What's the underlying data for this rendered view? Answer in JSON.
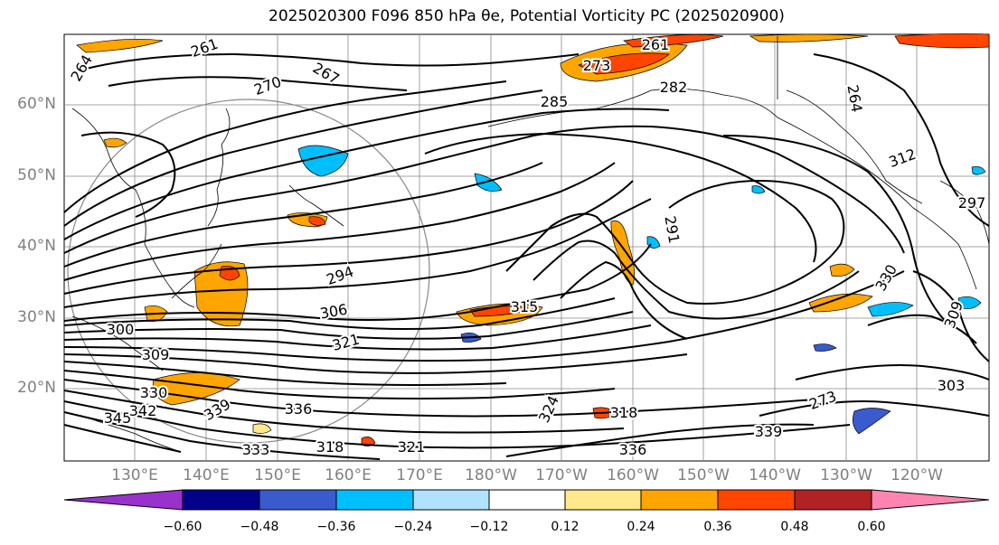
{
  "title": "2025020300 F096 850 hPa θe, Potential Vorticity PC (2025020900)",
  "latitude_labels": [
    "60°N",
    "50°N",
    "40°N",
    "30°N",
    "20°N"
  ],
  "longitude_labels": [
    "130°E",
    "140°E",
    "150°E",
    "160°E",
    "170°E",
    "180°W",
    "170°W",
    "160°W",
    "150°W",
    "140°W",
    "130°W",
    "120°W"
  ],
  "contour_labels": [
    "261",
    "264",
    "267",
    "270",
    "261",
    "273",
    "282",
    "285",
    "264",
    "291",
    "294",
    "306",
    "300",
    "309",
    "315",
    "321",
    "330",
    "345",
    "342",
    "339",
    "336",
    "333",
    "318",
    "321",
    "324",
    "318",
    "273",
    "303",
    "312",
    "330",
    "336",
    "339",
    "297",
    "309"
  ],
  "colorbar": {
    "ticks": [
      "−0.60",
      "−0.48",
      "−0.36",
      "−0.24",
      "−0.12",
      "0.12",
      "0.24",
      "0.36",
      "0.48",
      "0.60"
    ],
    "colors": [
      "#9932cc",
      "#00008b",
      "#3a5bcd",
      "#00bfff",
      "#b0e2ff",
      "#ffffff",
      "#ffe98a",
      "#ffa500",
      "#ff4500",
      "#b22222",
      "#ff85b0"
    ]
  }
}
